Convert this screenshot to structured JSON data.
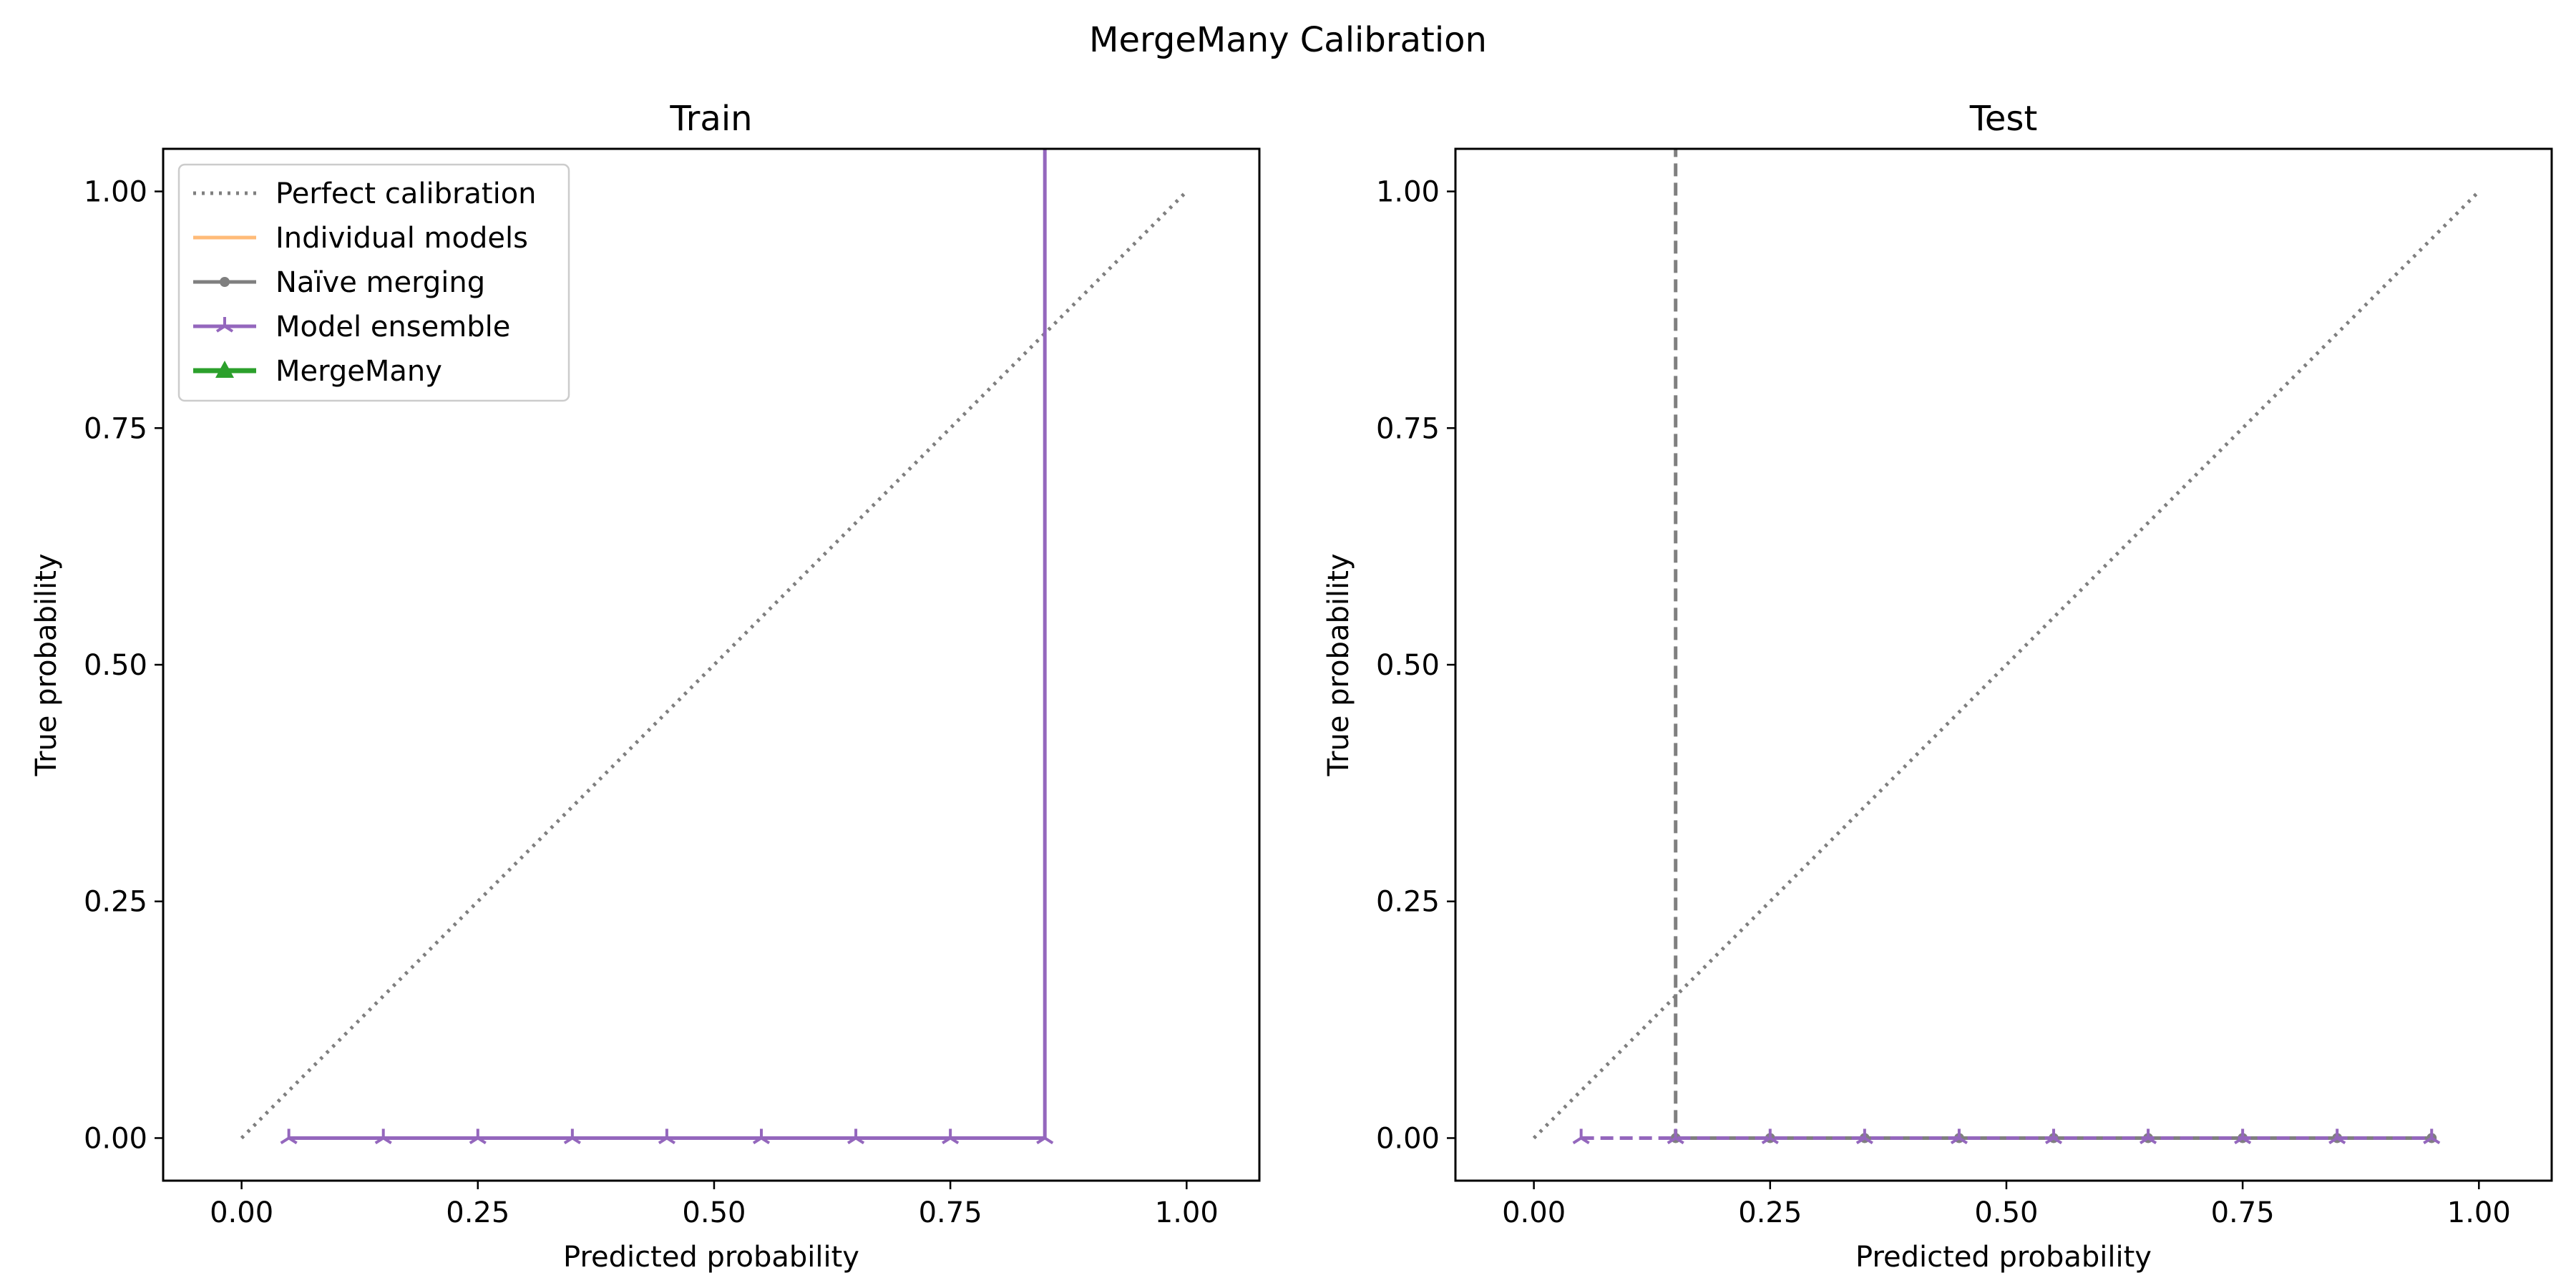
{
  "figure": {
    "title": "MergeMany Calibration"
  },
  "chart_data": [
    {
      "type": "line",
      "title": "Train",
      "xlabel": "Predicted probability",
      "ylabel": "True probability",
      "xlim": [
        -0.083,
        1.077
      ],
      "ylim": [
        -0.045,
        1.045
      ],
      "xticks": [
        "0.00",
        "0.25",
        "0.50",
        "0.75",
        "1.00"
      ],
      "yticks": [
        "0.00",
        "0.25",
        "0.50",
        "0.75",
        "1.00"
      ],
      "grid": false,
      "legend_position": "top-left",
      "series": [
        {
          "name": "Perfect calibration",
          "color": "#7f7f7f",
          "style": "dotted",
          "marker": "none",
          "x": [
            0.0,
            1.0
          ],
          "y": [
            0.0,
            1.0
          ]
        },
        {
          "name": "Individual models",
          "color": "#ffbb78",
          "style": "solid",
          "marker": "none",
          "x": [],
          "y": []
        },
        {
          "name": "Naïve merging",
          "color": "#7f7f7f",
          "style": "solid",
          "marker": "circle",
          "x": [],
          "y": []
        },
        {
          "name": "Model ensemble",
          "color": "#9467bd",
          "style": "solid",
          "marker": "tri",
          "x": [
            0.05,
            0.15,
            0.25,
            0.35,
            0.45,
            0.55,
            0.65,
            0.75,
            0.85,
            0.85
          ],
          "y": [
            0.0,
            0.0,
            0.0,
            0.0,
            0.0,
            0.0,
            0.0,
            0.0,
            0.0,
            1.05
          ]
        },
        {
          "name": "MergeMany",
          "color": "#2ca02c",
          "style": "solid",
          "marker": "triangle",
          "x": [],
          "y": []
        }
      ]
    },
    {
      "type": "line",
      "title": "Test",
      "xlabel": "Predicted probability",
      "ylabel": "True probability",
      "xlim": [
        -0.083,
        1.077
      ],
      "ylim": [
        -0.045,
        1.045
      ],
      "xticks": [
        "0.00",
        "0.25",
        "0.50",
        "0.75",
        "1.00"
      ],
      "yticks": [
        "0.00",
        "0.25",
        "0.50",
        "0.75",
        "1.00"
      ],
      "grid": false,
      "series": [
        {
          "name": "Perfect calibration",
          "color": "#7f7f7f",
          "style": "dotted",
          "marker": "none",
          "x": [
            0.0,
            1.0
          ],
          "y": [
            0.0,
            1.0
          ]
        },
        {
          "name": "Naïve merging",
          "color": "#7f7f7f",
          "style": "dashed",
          "marker": "circle",
          "x": [
            0.15,
            0.15,
            0.25,
            0.35,
            0.45,
            0.55,
            0.65,
            0.75,
            0.85,
            0.95
          ],
          "y": [
            1.05,
            0.0,
            0.0,
            0.0,
            0.0,
            0.0,
            0.0,
            0.0,
            0.0,
            0.0
          ]
        },
        {
          "name": "Model ensemble",
          "color": "#9467bd",
          "style": "dashed",
          "marker": "tri",
          "x": [
            0.05,
            0.15,
            0.25,
            0.35,
            0.45,
            0.55,
            0.65,
            0.75,
            0.85,
            0.95
          ],
          "y": [
            0.0,
            0.0,
            0.0,
            0.0,
            0.0,
            0.0,
            0.0,
            0.0,
            0.0,
            0.0
          ]
        }
      ]
    }
  ]
}
